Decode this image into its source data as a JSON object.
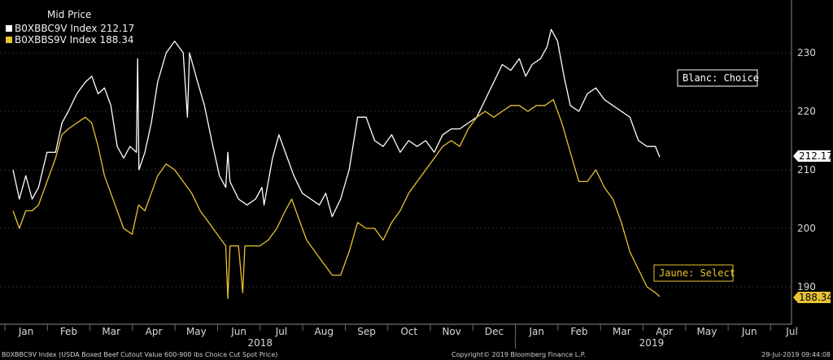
{
  "chart_data": {
    "type": "line",
    "legend_title": "Mid Price",
    "legend_placement": "top-left",
    "grid": true,
    "ylim": [
      184,
      237
    ],
    "yticks": [
      190,
      200,
      210,
      220,
      230
    ],
    "x_months": [
      "Jan",
      "Feb",
      "Mar",
      "Apr",
      "May",
      "Jun",
      "Jul",
      "Aug",
      "Sep",
      "Oct",
      "Nov",
      "Dec",
      "Jan",
      "Feb",
      "Mar",
      "Apr",
      "May",
      "Jun",
      "Jul"
    ],
    "x_years": [
      {
        "label": "2018"
      },
      {
        "label": "2019"
      }
    ],
    "series": [
      {
        "name": "B0XBBC9V Index",
        "last_value": "212.17",
        "color": "#ffffff",
        "annotation": "Blanc: Choice",
        "points": [
          [
            0,
            210
          ],
          [
            0.15,
            205
          ],
          [
            0.3,
            209
          ],
          [
            0.45,
            205
          ],
          [
            0.6,
            207
          ],
          [
            0.8,
            213
          ],
          [
            1.0,
            213
          ],
          [
            1.15,
            218
          ],
          [
            1.3,
            220
          ],
          [
            1.5,
            223
          ],
          [
            1.7,
            225
          ],
          [
            1.85,
            226
          ],
          [
            2.0,
            223
          ],
          [
            2.15,
            224
          ],
          [
            2.3,
            221
          ],
          [
            2.45,
            214
          ],
          [
            2.6,
            212
          ],
          [
            2.75,
            214
          ],
          [
            2.9,
            213
          ],
          [
            2.93,
            229
          ],
          [
            2.96,
            210
          ],
          [
            3.1,
            213
          ],
          [
            3.25,
            218
          ],
          [
            3.4,
            225
          ],
          [
            3.6,
            230
          ],
          [
            3.8,
            232
          ],
          [
            4.0,
            230
          ],
          [
            4.1,
            219
          ],
          [
            4.15,
            230
          ],
          [
            4.3,
            226
          ],
          [
            4.5,
            221
          ],
          [
            4.7,
            214
          ],
          [
            4.85,
            209
          ],
          [
            5.0,
            207
          ],
          [
            5.05,
            213
          ],
          [
            5.1,
            208
          ],
          [
            5.3,
            205
          ],
          [
            5.5,
            204
          ],
          [
            5.7,
            205
          ],
          [
            5.85,
            207
          ],
          [
            5.9,
            204
          ],
          [
            6.1,
            212
          ],
          [
            6.25,
            216
          ],
          [
            6.4,
            213
          ],
          [
            6.6,
            209
          ],
          [
            6.8,
            206
          ],
          [
            7.0,
            205
          ],
          [
            7.2,
            204
          ],
          [
            7.35,
            206
          ],
          [
            7.5,
            202
          ],
          [
            7.7,
            205
          ],
          [
            7.9,
            210
          ],
          [
            8.1,
            219
          ],
          [
            8.3,
            219
          ],
          [
            8.5,
            215
          ],
          [
            8.7,
            214
          ],
          [
            8.9,
            216
          ],
          [
            9.1,
            213
          ],
          [
            9.3,
            215
          ],
          [
            9.5,
            214
          ],
          [
            9.7,
            215
          ],
          [
            9.9,
            213
          ],
          [
            10.1,
            216
          ],
          [
            10.3,
            217
          ],
          [
            10.5,
            217
          ],
          [
            10.7,
            218
          ],
          [
            10.9,
            219
          ],
          [
            11.1,
            222
          ],
          [
            11.3,
            225
          ],
          [
            11.5,
            228
          ],
          [
            11.7,
            227
          ],
          [
            11.9,
            229
          ],
          [
            12.05,
            226
          ],
          [
            12.2,
            228
          ],
          [
            12.4,
            229
          ],
          [
            12.55,
            231
          ],
          [
            12.65,
            234
          ],
          [
            12.8,
            232
          ],
          [
            12.95,
            226
          ],
          [
            13.1,
            221
          ],
          [
            13.3,
            220
          ],
          [
            13.5,
            223
          ],
          [
            13.7,
            224
          ],
          [
            13.9,
            222
          ],
          [
            14.1,
            221
          ],
          [
            14.3,
            220
          ],
          [
            14.5,
            219
          ],
          [
            14.7,
            215
          ],
          [
            14.9,
            214
          ],
          [
            15.1,
            214
          ],
          [
            15.2,
            212.17
          ]
        ]
      },
      {
        "name": "B0XBBS9V Index",
        "last_value": "188.34",
        "color": "#e8c233",
        "annotation": "Jaune: Select",
        "points": [
          [
            0,
            203
          ],
          [
            0.15,
            200
          ],
          [
            0.3,
            203
          ],
          [
            0.45,
            203
          ],
          [
            0.6,
            204
          ],
          [
            0.8,
            208
          ],
          [
            1.0,
            212
          ],
          [
            1.15,
            216
          ],
          [
            1.3,
            217
          ],
          [
            1.5,
            218
          ],
          [
            1.7,
            219
          ],
          [
            1.85,
            218
          ],
          [
            2.0,
            214
          ],
          [
            2.15,
            209
          ],
          [
            2.3,
            206
          ],
          [
            2.45,
            203
          ],
          [
            2.6,
            200
          ],
          [
            2.8,
            199
          ],
          [
            2.95,
            204
          ],
          [
            3.1,
            203
          ],
          [
            3.25,
            206
          ],
          [
            3.4,
            209
          ],
          [
            3.6,
            211
          ],
          [
            3.8,
            210
          ],
          [
            4.0,
            208
          ],
          [
            4.2,
            206
          ],
          [
            4.4,
            203
          ],
          [
            4.6,
            201
          ],
          [
            4.8,
            199
          ],
          [
            5.0,
            197
          ],
          [
            5.05,
            188
          ],
          [
            5.1,
            197
          ],
          [
            5.3,
            197
          ],
          [
            5.4,
            189
          ],
          [
            5.45,
            197
          ],
          [
            5.6,
            197
          ],
          [
            5.8,
            197
          ],
          [
            6.0,
            198
          ],
          [
            6.2,
            200
          ],
          [
            6.4,
            203
          ],
          [
            6.55,
            205
          ],
          [
            6.7,
            202
          ],
          [
            6.9,
            198
          ],
          [
            7.1,
            196
          ],
          [
            7.3,
            194
          ],
          [
            7.5,
            192
          ],
          [
            7.7,
            192
          ],
          [
            7.9,
            196
          ],
          [
            8.1,
            201
          ],
          [
            8.3,
            200
          ],
          [
            8.5,
            200
          ],
          [
            8.7,
            198
          ],
          [
            8.9,
            201
          ],
          [
            9.1,
            203
          ],
          [
            9.3,
            206
          ],
          [
            9.5,
            208
          ],
          [
            9.7,
            210
          ],
          [
            9.9,
            212
          ],
          [
            10.1,
            214
          ],
          [
            10.3,
            215
          ],
          [
            10.5,
            214
          ],
          [
            10.7,
            217
          ],
          [
            10.9,
            219
          ],
          [
            11.1,
            220
          ],
          [
            11.3,
            219
          ],
          [
            11.5,
            220
          ],
          [
            11.7,
            221
          ],
          [
            11.9,
            221
          ],
          [
            12.1,
            220
          ],
          [
            12.3,
            221
          ],
          [
            12.5,
            221
          ],
          [
            12.7,
            222
          ],
          [
            12.9,
            218
          ],
          [
            13.1,
            213
          ],
          [
            13.3,
            208
          ],
          [
            13.5,
            208
          ],
          [
            13.7,
            210
          ],
          [
            13.9,
            207
          ],
          [
            14.1,
            205
          ],
          [
            14.3,
            201
          ],
          [
            14.5,
            196
          ],
          [
            14.7,
            193
          ],
          [
            14.9,
            190
          ],
          [
            15.1,
            189
          ],
          [
            15.2,
            188.34
          ]
        ]
      }
    ]
  },
  "footer": {
    "source": "B0XBBC9V Index (USDA Boxed Beef Cutout Value 600-900 lbs Choice Cut Spot Price)",
    "copyright": "Copyright© 2019 Bloomberg Finance L.P.",
    "timestamp": "29-Jul-2019 09:44:08"
  }
}
